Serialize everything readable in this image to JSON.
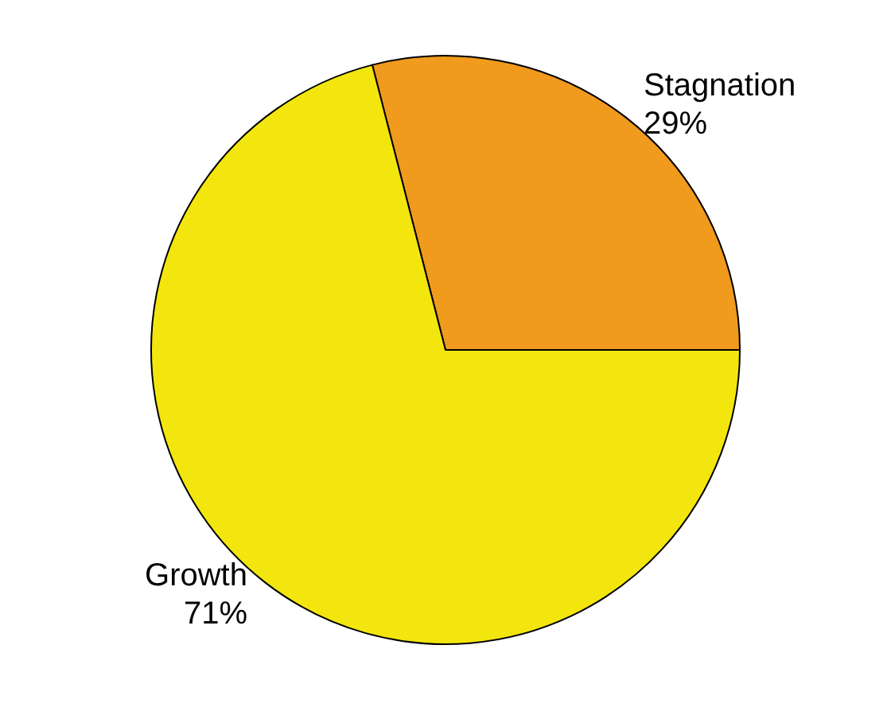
{
  "chart_data": {
    "type": "pie",
    "categories": [
      "Stagnation",
      "Growth"
    ],
    "values": [
      29,
      71
    ],
    "colors": [
      "#f09a1e",
      "#f2e60e"
    ],
    "value_labels": [
      "29%",
      "71%"
    ],
    "legend": false
  }
}
